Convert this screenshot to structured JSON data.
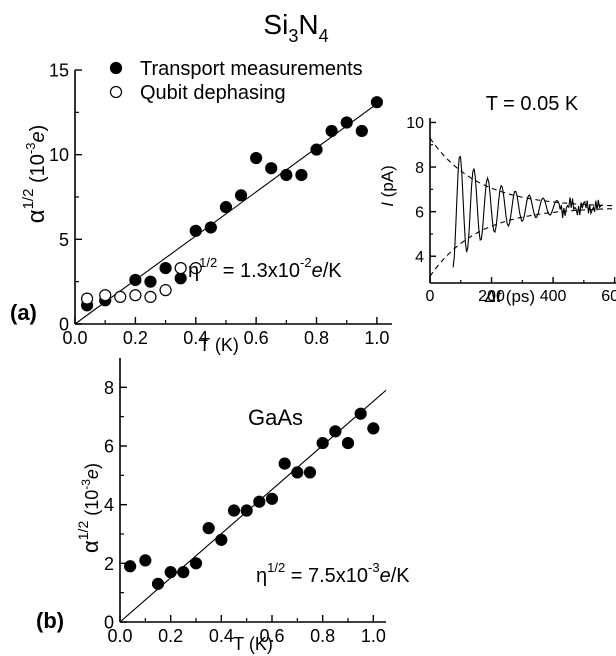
{
  "chart_data": [
    {
      "id": "a",
      "panel_label": "(a)",
      "type": "scatter",
      "title_main": "Si",
      "title_sub1": "3",
      "title_mid": "N",
      "title_sub2": "4",
      "xlabel": "T (K)",
      "ylabel": {
        "greek": "α",
        "sup": "1/2",
        "open": " (10",
        "exp": "-3",
        "unit": "e",
        "close": ")"
      },
      "xlim": [
        0.0,
        1.05
      ],
      "ylim": [
        0,
        15
      ],
      "x_ticks": [
        "0.0",
        "0.2",
        "0.4",
        "0.6",
        "0.8",
        "1.0"
      ],
      "y_ticks": [
        "0",
        "5",
        "10",
        "15"
      ],
      "legend_position": "top-left",
      "series": [
        {
          "name": "Transport measurements",
          "marker": "filled-circle",
          "x": [
            0.04,
            0.1,
            0.2,
            0.25,
            0.3,
            0.35,
            0.4,
            0.45,
            0.5,
            0.55,
            0.6,
            0.65,
            0.7,
            0.75,
            0.8,
            0.85,
            0.9,
            0.95,
            1.0
          ],
          "y": [
            1.1,
            1.4,
            2.6,
            2.5,
            3.3,
            2.7,
            5.5,
            5.7,
            6.9,
            7.6,
            9.8,
            9.2,
            8.8,
            8.8,
            10.3,
            11.4,
            11.9,
            11.4,
            13.1
          ]
        },
        {
          "name": "Qubit dephasing",
          "marker": "open-circle",
          "x": [
            0.04,
            0.1,
            0.15,
            0.2,
            0.25,
            0.3,
            0.35,
            0.4
          ],
          "y": [
            1.5,
            1.7,
            1.6,
            1.7,
            1.6,
            2.0,
            3.3,
            3.3
          ]
        }
      ],
      "fit_line": {
        "x": [
          0.0,
          1.0
        ],
        "y": [
          0.0,
          13.0
        ]
      },
      "annotation": {
        "eta": "η",
        "sup": "1/2",
        "eq": " = 1.3x10",
        "exp": "-2",
        "unit": "e",
        "tail": "/K"
      },
      "inset": {
        "type": "line",
        "title": "T = 0.05 K",
        "xlabel_var": "Δt",
        "xlabel_unit": " (ps)",
        "ylabel_var": "I",
        "ylabel_unit": " (pA)",
        "xlim": [
          0,
          650
        ],
        "ylim": [
          2.8,
          10.2
        ],
        "x_ticks": [
          "0",
          "200",
          "400",
          "600"
        ],
        "y_ticks": [
          "4",
          "6",
          "8",
          "10"
        ],
        "signal": {
          "x_start": 75,
          "x_end": 560,
          "step": 4,
          "mean": 6.2,
          "amplitude": 2.7,
          "decay_ps": 155,
          "period_ps": 45
        },
        "envelope": {
          "x_start": 0,
          "x_end": 650,
          "mean": 6.2,
          "amplitude": 3.1,
          "decay_ps": 155
        }
      }
    },
    {
      "id": "b",
      "panel_label": "(b)",
      "type": "scatter",
      "title": "GaAs",
      "xlabel": "T (K)",
      "ylabel": {
        "greek": "α",
        "sup": "1/2",
        "open": " (10",
        "exp": "-3",
        "unit": "e",
        "close": ")"
      },
      "xlim": [
        0.0,
        1.05
      ],
      "ylim": [
        0,
        9
      ],
      "x_ticks": [
        "0.0",
        "0.2",
        "0.4",
        "0.6",
        "0.8",
        "1.0"
      ],
      "y_ticks": [
        "0",
        "2",
        "4",
        "6",
        "8"
      ],
      "series": [
        {
          "marker": "filled-circle",
          "x": [
            0.04,
            0.1,
            0.15,
            0.2,
            0.25,
            0.3,
            0.35,
            0.4,
            0.45,
            0.5,
            0.55,
            0.6,
            0.65,
            0.7,
            0.75,
            0.8,
            0.85,
            0.9,
            0.95,
            1.0
          ],
          "y": [
            1.9,
            2.1,
            1.3,
            1.7,
            1.7,
            2.0,
            3.2,
            2.8,
            3.8,
            3.8,
            4.1,
            4.2,
            5.4,
            5.1,
            5.1,
            6.1,
            6.5,
            6.1,
            7.1,
            6.6
          ]
        }
      ],
      "fit_line": {
        "x": [
          0.0,
          1.05
        ],
        "y": [
          0.0,
          7.9
        ]
      },
      "annotation": {
        "eta": "η",
        "sup": "1/2",
        "eq": " = 7.5x10",
        "exp": "-3",
        "unit": "e",
        "tail": "/K"
      }
    }
  ]
}
